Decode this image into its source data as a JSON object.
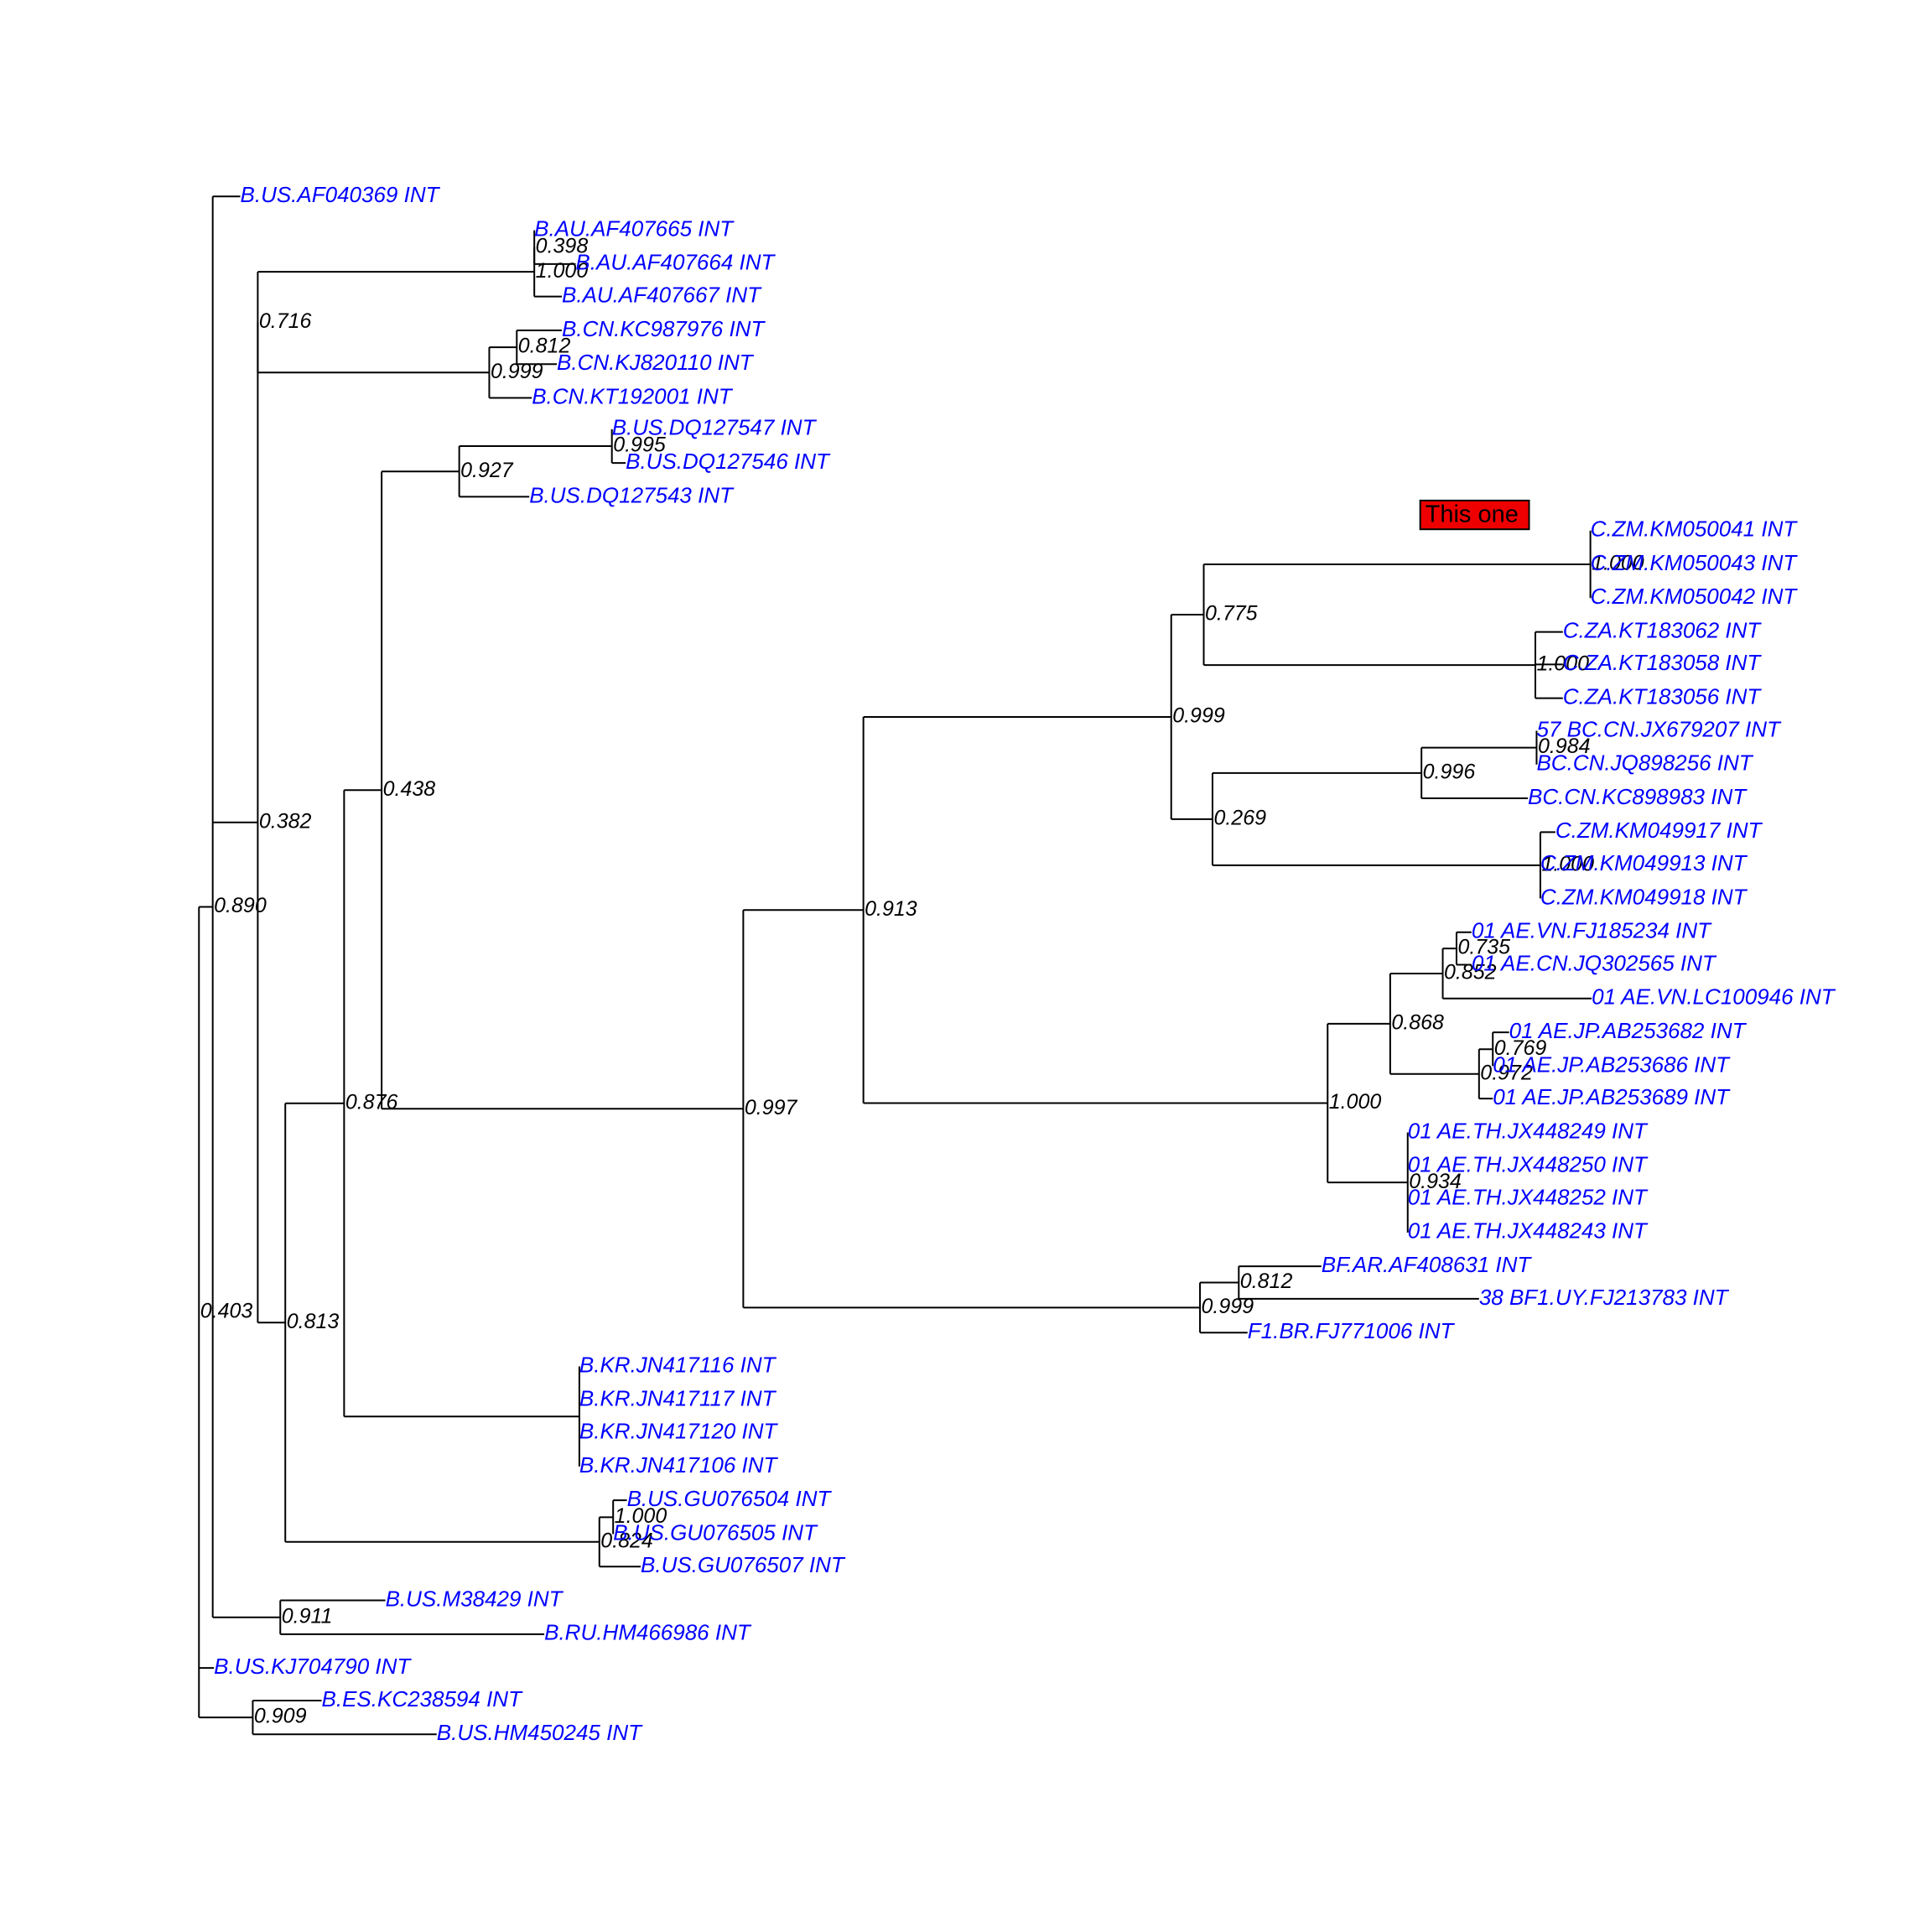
{
  "tree": {
    "tip_color": "#0000ff",
    "support_color": "#000000",
    "annotation": {
      "label": "This one",
      "color": "#ee0000"
    },
    "tips": [
      "B.US.AF040369 INT",
      "B.AU.AF407665 INT",
      "B.AU.AF407664 INT",
      "B.AU.AF407667 INT",
      "B.CN.KC987976 INT",
      "B.CN.KJ820110 INT",
      "B.CN.KT192001 INT",
      "B.US.DQ127547 INT",
      "B.US.DQ127546 INT",
      "B.US.DQ127543 INT",
      "C.ZM.KM050041 INT",
      "C.ZM.KM050043 INT",
      "C.ZM.KM050042 INT",
      "C.ZA.KT183062 INT",
      "C.ZA.KT183058 INT",
      "C.ZA.KT183056 INT",
      "57 BC.CN.JX679207 INT",
      "BC.CN.JQ898256 INT",
      "BC.CN.KC898983 INT",
      "C.ZM.KM049917 INT",
      "C.ZM.KM049913 INT",
      "C.ZM.KM049918 INT",
      "01 AE.VN.FJ185234 INT",
      "01 AE.CN.JQ302565 INT",
      "01 AE.VN.LC100946 INT",
      "01 AE.JP.AB253682 INT",
      "01 AE.JP.AB253686 INT",
      "01 AE.JP.AB253689 INT",
      "01 AE.TH.JX448249 INT",
      "01 AE.TH.JX448250 INT",
      "01 AE.TH.JX448252 INT",
      "01 AE.TH.JX448243 INT",
      "BF.AR.AF408631 INT",
      "38 BF1.UY.FJ213783 INT",
      "F1.BR.FJ771006 INT",
      "B.KR.JN417116 INT",
      "B.KR.JN417117 INT",
      "B.KR.JN417120 INT",
      "B.KR.JN417106 INT",
      "B.US.GU076504 INT",
      "B.US.GU076505 INT",
      "B.US.GU076507 INT",
      "B.US.M38429 INT",
      "B.RU.HM466986 INT",
      "B.US.KJ704790 INT",
      "B.ES.KC238594 INT",
      "B.US.HM450245 INT"
    ],
    "supports": [
      "0.403",
      "0.716",
      "0.398",
      "1.000",
      "0.812",
      "0.999",
      "0.382",
      "0.438",
      "0.927",
      "0.995",
      "0.876",
      "0.997",
      "0.913",
      "0.999",
      "0.775",
      "1.000",
      "1.000",
      "0.269",
      "0.996",
      "0.984",
      "1.000",
      "1.000",
      "0.868",
      "0.852",
      "0.735",
      "0.769",
      "0.972",
      "0.934",
      "0.999",
      "0.812",
      "0.813",
      "0.890",
      "0.824",
      "1.000",
      "0.911",
      "0.909"
    ]
  }
}
